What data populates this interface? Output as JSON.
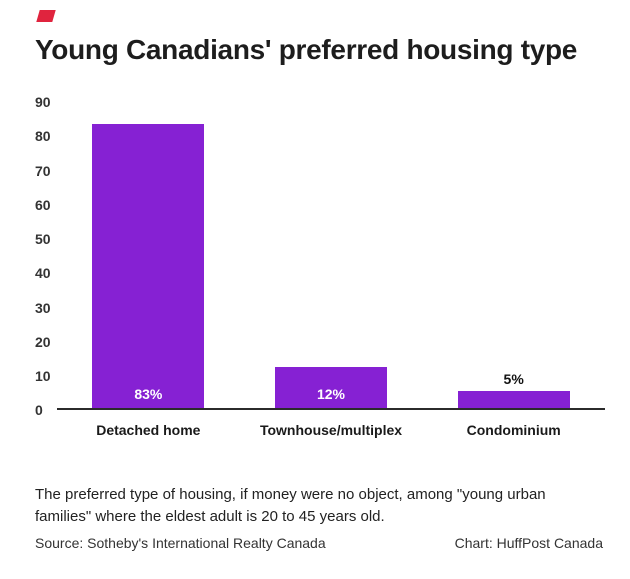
{
  "brand": {
    "mark_name": "huffpost-red-mark"
  },
  "chart_data": {
    "type": "bar",
    "title": "Young Canadians' preferred housing type",
    "categories": [
      "Detached home",
      "Townhouse/multiplex",
      "Condominium"
    ],
    "values": [
      83,
      12,
      5
    ],
    "value_labels": [
      "83%",
      "12%",
      "5%"
    ],
    "xlabel": "",
    "ylabel": "",
    "ylim": [
      0,
      90
    ],
    "yticks": [
      0,
      10,
      20,
      30,
      40,
      50,
      60,
      70,
      80,
      90
    ],
    "bar_color": "#8621d3",
    "grid": false,
    "legend": "none"
  },
  "footer": {
    "note": "The preferred type of housing, if money were no object, among \"young urban families\" where the eldest adult is 20 to 45 years old.",
    "source": "Source: Sotheby's International Realty Canada",
    "credit": "Chart: HuffPost Canada"
  },
  "colors": {
    "bar": "#8621d3",
    "accent_mark": "#e0243e",
    "title_text": "#1d1d1d",
    "axis_text": "#333333",
    "baseline": "#2b2b2b"
  }
}
